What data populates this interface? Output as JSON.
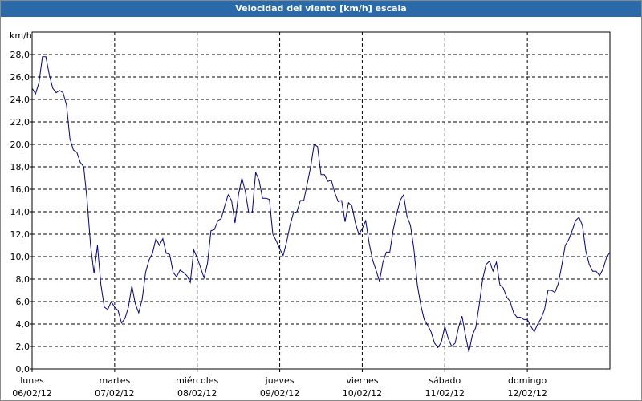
{
  "chart_data": {
    "type": "line",
    "title": "Velocidad del viento [km/h] escala",
    "y_label": "km/h",
    "x": [
      0,
      1,
      2,
      3,
      4,
      5,
      6,
      7,
      8,
      9,
      10,
      11,
      12,
      13,
      14,
      15,
      16,
      17,
      18,
      19,
      20,
      21,
      22,
      23,
      24,
      25,
      26,
      27,
      28,
      29,
      30,
      31,
      32,
      33,
      34,
      35,
      36,
      37,
      38,
      39,
      40,
      41,
      42,
      43,
      44,
      45,
      46,
      47,
      48,
      49,
      50,
      51,
      52,
      53,
      54,
      55,
      56,
      57,
      58,
      59,
      60,
      61,
      62,
      63,
      64,
      65,
      66,
      67,
      68,
      69,
      70,
      71,
      72,
      73,
      74,
      75,
      76,
      77,
      78,
      79,
      80,
      81,
      82,
      83,
      84,
      85,
      86,
      87,
      88,
      89,
      90,
      91,
      92,
      93,
      94,
      95,
      96,
      97,
      98,
      99,
      100,
      101,
      102,
      103,
      104,
      105,
      106,
      107,
      108,
      109,
      110,
      111,
      112,
      113,
      114,
      115,
      116,
      117,
      118,
      119,
      120,
      121,
      122,
      123,
      124,
      125,
      126,
      127,
      128,
      129,
      130,
      131,
      132,
      133,
      134,
      135,
      136,
      137,
      138,
      139,
      140,
      141,
      142,
      143,
      144,
      145,
      146,
      147,
      148,
      149,
      150,
      151,
      152,
      153,
      154,
      155,
      156,
      157,
      158,
      159,
      160,
      161,
      162,
      163,
      164,
      165,
      166,
      167,
      168
    ],
    "series": [
      {
        "color": "#00008b",
        "values": [
          25,
          24.5,
          25.5,
          27.8,
          27.8,
          26.2,
          25,
          24.6,
          24.8,
          24.6,
          23.5,
          20.5,
          19.5,
          19.3,
          18.4,
          18,
          15,
          11,
          8.5,
          11,
          7.5,
          5.5,
          5.3,
          6,
          5.5,
          5.2,
          4.1,
          4.5,
          5.5,
          7.4,
          5.8,
          5,
          6.2,
          8.6,
          9.7,
          10.3,
          11.6,
          11,
          11.6,
          10.3,
          10.2,
          8.6,
          8.2,
          8.8,
          8.6,
          8.3,
          7.7,
          10.6,
          9.9,
          9,
          8.1,
          9.4,
          12.3,
          12.4,
          13.2,
          13.4,
          14.5,
          15.5,
          15,
          13,
          15.5,
          17,
          15.8,
          13.9,
          13.9,
          17.5,
          16.8,
          15.2,
          15.2,
          15.1,
          12,
          11.4,
          10.7,
          10.1,
          11.3,
          12.8,
          13.9,
          14,
          15,
          15,
          16.5,
          18,
          20,
          19.8,
          17.3,
          17.3,
          16.7,
          16.8,
          15.7,
          14.9,
          15,
          13.1,
          14.8,
          14.5,
          13,
          12,
          12.5,
          13.2,
          11.2,
          9.7,
          8.8,
          7.8,
          9.5,
          10.4,
          10.4,
          12.4,
          13.8,
          15,
          15.5,
          13.6,
          12.8,
          10.7,
          7.5,
          5.7,
          4.4,
          3.9,
          3.3,
          2.3,
          1.9,
          2.4,
          3.8,
          2.7,
          2,
          2.3,
          3.7,
          4.7,
          3,
          1.5,
          3,
          3.7,
          5.7,
          8,
          9.3,
          9.6,
          8.7,
          9.5,
          7.5,
          7.2,
          6.4,
          6,
          5,
          4.6,
          4.6,
          4.4,
          4.4,
          3.8,
          3.3,
          4,
          4.5,
          5.3,
          7,
          7,
          6.8,
          7.6,
          9.2,
          11,
          11.5,
          12.3,
          13.2,
          13.5,
          12.8,
          10.5,
          9.3,
          8.7,
          8.7,
          8.3,
          8.9,
          9.9,
          10.4
        ]
      }
    ],
    "xlim": [
      0,
      168
    ],
    "xticks": [
      {
        "value": 0,
        "label": "lunes"
      },
      {
        "value": 24,
        "label": "martes"
      },
      {
        "value": 48,
        "label": "miércoles"
      },
      {
        "value": 72,
        "label": "jueves"
      },
      {
        "value": 96,
        "label": "viernes"
      },
      {
        "value": 120,
        "label": "sábado"
      },
      {
        "value": 144,
        "label": "domingo"
      }
    ],
    "xtick_dates": [
      "06/02/12",
      "07/02/12",
      "08/02/12",
      "09/02/12",
      "10/02/12",
      "11/02/12",
      "12/02/12"
    ],
    "ylim": [
      0,
      30
    ],
    "yticks": [
      {
        "value": 0,
        "label": "0,0"
      },
      {
        "value": 2,
        "label": "2,0"
      },
      {
        "value": 4,
        "label": "4,0"
      },
      {
        "value": 6,
        "label": "6,0"
      },
      {
        "value": 8,
        "label": "8,0"
      },
      {
        "value": 10,
        "label": "10,0"
      },
      {
        "value": 12,
        "label": "12,0"
      },
      {
        "value": 14,
        "label": "14,0"
      },
      {
        "value": 16,
        "label": "16,0"
      },
      {
        "value": 18,
        "label": "18,0"
      },
      {
        "value": 20,
        "label": "20,0"
      },
      {
        "value": 22,
        "label": "22,0"
      },
      {
        "value": 24,
        "label": "24,0"
      },
      {
        "value": 26,
        "label": "26,0"
      },
      {
        "value": 28,
        "label": "28,0"
      }
    ],
    "grid": true
  }
}
